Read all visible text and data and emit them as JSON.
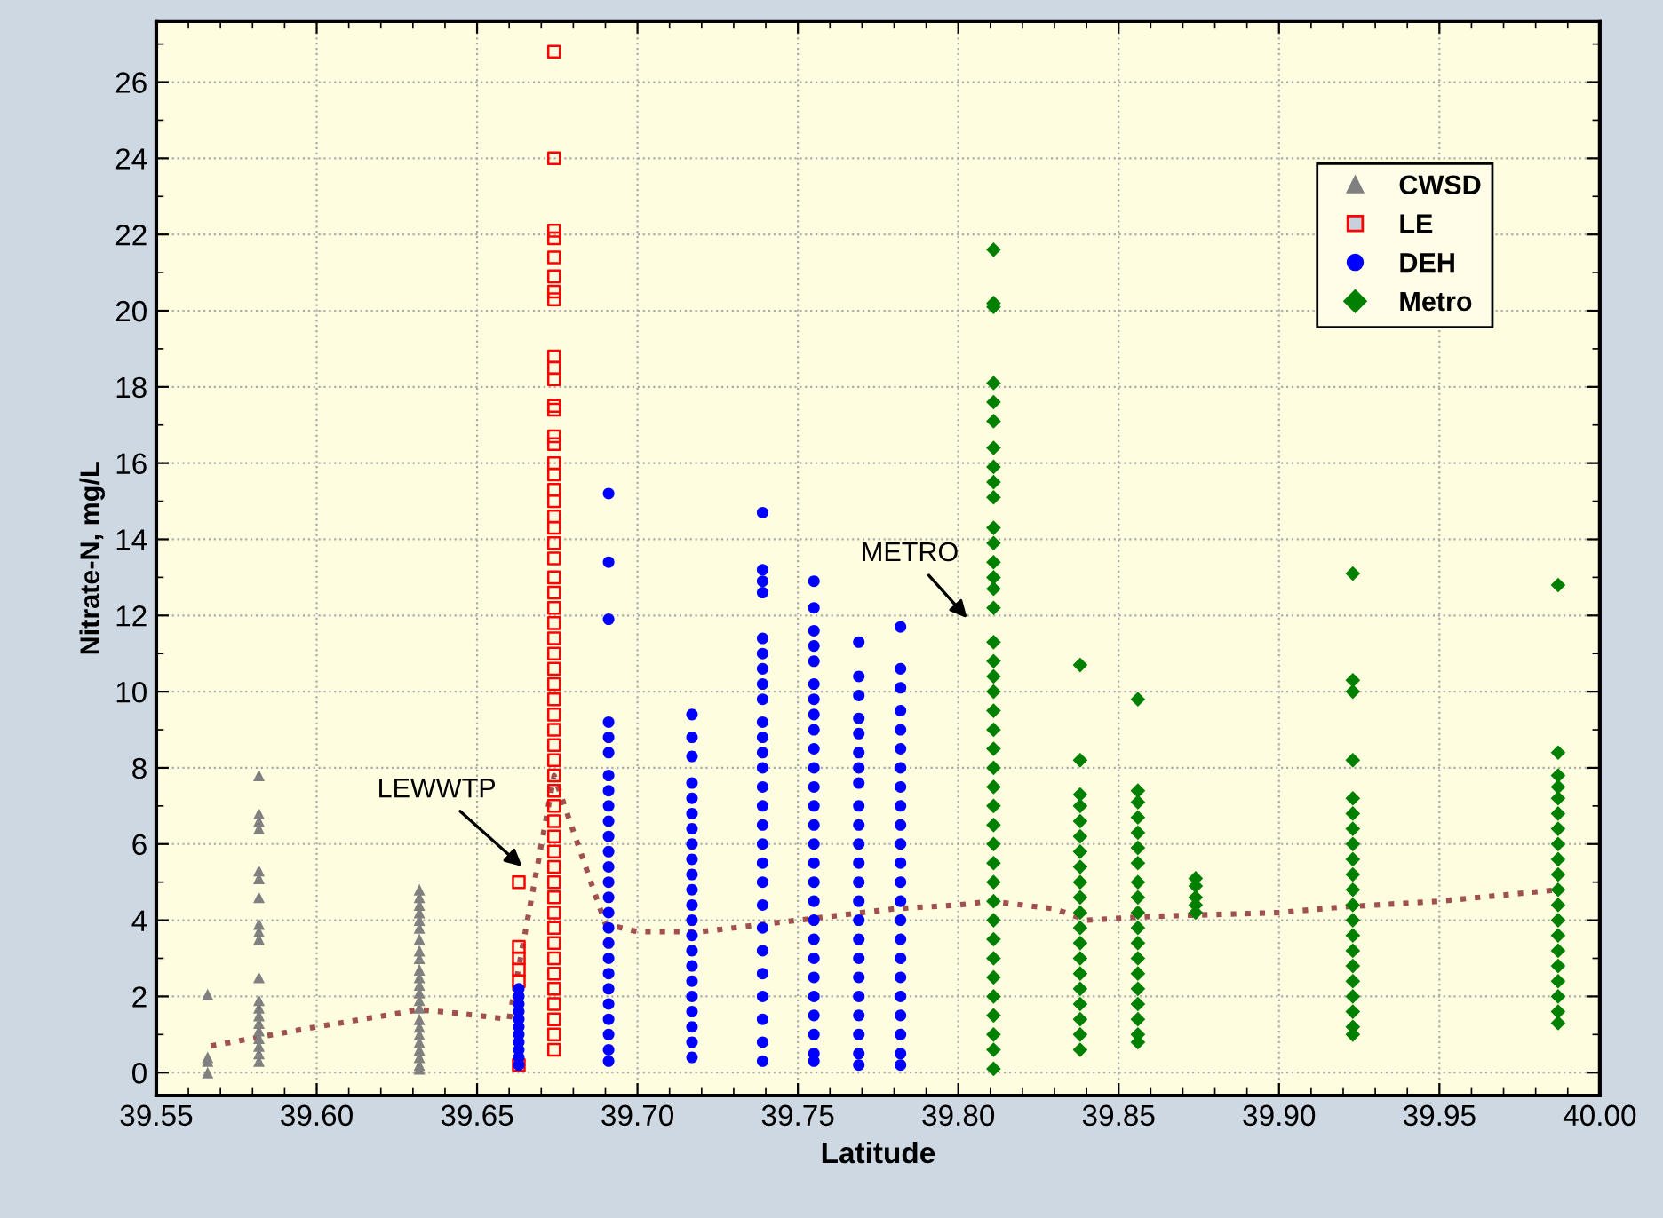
{
  "chart_data": {
    "type": "scatter",
    "xlabel": "Latitude",
    "ylabel": "Nitrate-N, mg/L",
    "xlim": [
      39.55,
      40.0
    ],
    "xticks": [
      {
        "value": 39.55,
        "label": "39.55"
      },
      {
        "value": 39.6,
        "label": "39.60"
      },
      {
        "value": 39.65,
        "label": "39.65"
      },
      {
        "value": 39.7,
        "label": "39.70"
      },
      {
        "value": 39.75,
        "label": "39.75"
      },
      {
        "value": 39.8,
        "label": "39.80"
      },
      {
        "value": 39.85,
        "label": "39.85"
      },
      {
        "value": 39.9,
        "label": "39.90"
      },
      {
        "value": 39.95,
        "label": "39.95"
      },
      {
        "value": 40.0,
        "label": "40.00"
      }
    ],
    "ylim": [
      -0.6,
      27.6
    ],
    "yticks": [
      0,
      2,
      4,
      6,
      8,
      10,
      12,
      14,
      16,
      18,
      20,
      22,
      24,
      26
    ],
    "grid": true,
    "legend": "top right",
    "annotations": [
      "LEWWTP",
      "METRO"
    ],
    "series": [
      {
        "name": "CWSD",
        "marker": "triangle",
        "color": "#808080",
        "x": [
          39.566,
          39.566,
          39.566,
          39.566,
          39.582,
          39.582,
          39.582,
          39.582,
          39.582,
          39.582,
          39.582,
          39.582,
          39.582,
          39.582,
          39.582,
          39.582,
          39.582,
          39.582,
          39.582,
          39.582,
          39.582,
          39.582,
          39.582,
          39.582,
          39.632,
          39.632,
          39.632,
          39.632,
          39.632,
          39.632,
          39.632,
          39.632,
          39.632,
          39.632,
          39.632,
          39.632,
          39.632,
          39.632,
          39.632,
          39.632,
          39.632,
          39.632,
          39.632,
          39.632,
          39.632,
          39.632,
          39.632
        ],
        "values": [
          2.05,
          0.4,
          0.3,
          0.0,
          7.8,
          6.8,
          6.6,
          6.4,
          5.3,
          5.1,
          4.6,
          3.9,
          3.7,
          3.5,
          2.5,
          1.9,
          1.7,
          1.5,
          1.3,
          1.1,
          0.9,
          0.7,
          0.5,
          0.3,
          4.8,
          4.6,
          4.4,
          4.2,
          4.0,
          3.8,
          3.5,
          3.2,
          3.0,
          2.7,
          2.5,
          2.3,
          2.1,
          1.9,
          1.7,
          1.4,
          1.2,
          1.0,
          0.8,
          0.6,
          0.4,
          0.2,
          0.1
        ]
      },
      {
        "name": "LE",
        "marker": "square",
        "color": "#ff0000",
        "x": [
          39.663,
          39.663,
          39.663,
          39.663,
          39.663,
          39.663,
          39.674,
          39.674,
          39.674,
          39.674,
          39.674,
          39.674,
          39.674,
          39.674,
          39.674,
          39.674,
          39.674,
          39.674,
          39.674,
          39.674,
          39.674,
          39.674,
          39.674,
          39.674,
          39.674,
          39.674,
          39.674,
          39.674,
          39.674,
          39.674,
          39.674,
          39.674,
          39.674,
          39.674,
          39.674,
          39.674,
          39.674,
          39.674,
          39.674,
          39.674,
          39.674,
          39.674,
          39.674,
          39.674,
          39.674,
          39.674,
          39.674,
          39.674,
          39.674,
          39.674,
          39.674,
          39.674,
          39.674,
          39.674,
          39.674,
          39.674,
          39.674,
          39.674,
          39.674,
          39.674,
          39.674
        ],
        "values": [
          5.0,
          3.3,
          3.0,
          2.7,
          2.4,
          0.2,
          26.8,
          24.0,
          22.1,
          21.9,
          21.4,
          20.9,
          20.5,
          20.3,
          18.8,
          18.5,
          18.2,
          17.5,
          17.4,
          16.7,
          16.5,
          16.0,
          15.7,
          15.3,
          15.0,
          14.6,
          14.3,
          13.9,
          13.5,
          13.0,
          12.6,
          12.2,
          11.8,
          11.4,
          11.0,
          10.6,
          10.2,
          9.8,
          9.4,
          9.0,
          8.6,
          8.2,
          7.8,
          7.4,
          7.0,
          6.6,
          6.2,
          5.8,
          5.4,
          5.0,
          4.6,
          4.2,
          3.8,
          3.4,
          3.0,
          2.6,
          2.2,
          1.8,
          1.4,
          1.0,
          0.6
        ]
      },
      {
        "name": "DEH",
        "marker": "circle",
        "color": "#0000ff",
        "x": [
          39.663,
          39.663,
          39.663,
          39.663,
          39.663,
          39.663,
          39.663,
          39.663,
          39.663,
          39.663,
          39.663,
          39.691,
          39.691,
          39.691,
          39.691,
          39.691,
          39.691,
          39.691,
          39.691,
          39.691,
          39.691,
          39.691,
          39.691,
          39.691,
          39.691,
          39.691,
          39.691,
          39.691,
          39.691,
          39.691,
          39.691,
          39.691,
          39.691,
          39.691,
          39.691,
          39.691,
          39.691,
          39.717,
          39.717,
          39.717,
          39.717,
          39.717,
          39.717,
          39.717,
          39.717,
          39.717,
          39.717,
          39.717,
          39.717,
          39.717,
          39.717,
          39.717,
          39.717,
          39.717,
          39.717,
          39.717,
          39.717,
          39.717,
          39.717,
          39.739,
          39.739,
          39.739,
          39.739,
          39.739,
          39.739,
          39.739,
          39.739,
          39.739,
          39.739,
          39.739,
          39.739,
          39.739,
          39.739,
          39.739,
          39.739,
          39.739,
          39.739,
          39.739,
          39.739,
          39.739,
          39.739,
          39.739,
          39.739,
          39.739,
          39.739,
          39.739,
          39.755,
          39.755,
          39.755,
          39.755,
          39.755,
          39.755,
          39.755,
          39.755,
          39.755,
          39.755,
          39.755,
          39.755,
          39.755,
          39.755,
          39.755,
          39.755,
          39.755,
          39.755,
          39.755,
          39.755,
          39.755,
          39.755,
          39.755,
          39.755,
          39.755,
          39.755,
          39.755,
          39.769,
          39.769,
          39.769,
          39.769,
          39.769,
          39.769,
          39.769,
          39.769,
          39.769,
          39.769,
          39.769,
          39.769,
          39.769,
          39.769,
          39.769,
          39.769,
          39.769,
          39.769,
          39.769,
          39.769,
          39.769,
          39.769,
          39.769,
          39.782,
          39.782,
          39.782,
          39.782,
          39.782,
          39.782,
          39.782,
          39.782,
          39.782,
          39.782,
          39.782,
          39.782,
          39.782,
          39.782,
          39.782,
          39.782,
          39.782,
          39.782,
          39.782,
          39.782,
          39.782,
          39.782,
          39.782
        ],
        "values": [
          2.2,
          2.0,
          1.8,
          1.6,
          1.4,
          1.2,
          1.0,
          0.8,
          0.6,
          0.4,
          0.2,
          15.2,
          13.4,
          11.9,
          9.2,
          8.8,
          8.4,
          7.8,
          7.4,
          7.0,
          6.6,
          6.2,
          5.8,
          5.4,
          5.0,
          4.6,
          4.2,
          3.8,
          3.4,
          3.0,
          2.6,
          2.2,
          1.8,
          1.4,
          1.0,
          0.6,
          0.3,
          9.4,
          8.8,
          8.3,
          7.6,
          7.2,
          6.8,
          6.4,
          6.0,
          5.6,
          5.2,
          4.8,
          4.4,
          4.0,
          3.6,
          3.2,
          2.8,
          2.4,
          2.0,
          1.6,
          1.2,
          0.8,
          0.4,
          14.7,
          13.2,
          12.9,
          12.6,
          11.4,
          11.0,
          10.6,
          10.2,
          9.8,
          9.2,
          8.8,
          8.4,
          8.0,
          7.5,
          7.0,
          6.5,
          6.0,
          5.5,
          5.0,
          4.4,
          3.8,
          3.2,
          2.6,
          2.0,
          1.4,
          0.8,
          0.3,
          12.9,
          12.2,
          11.6,
          11.2,
          10.8,
          10.2,
          9.8,
          9.4,
          9.0,
          8.5,
          8.0,
          7.5,
          7.0,
          6.5,
          6.0,
          5.5,
          5.0,
          4.5,
          4.0,
          3.5,
          3.0,
          2.5,
          2.0,
          1.5,
          1.0,
          0.5,
          0.3,
          11.3,
          10.4,
          9.9,
          9.3,
          8.9,
          8.4,
          8.0,
          7.6,
          7.0,
          6.5,
          6.0,
          5.5,
          5.0,
          4.5,
          4.0,
          3.5,
          3.0,
          2.5,
          2.0,
          1.5,
          1.0,
          0.5,
          0.2,
          11.7,
          10.6,
          10.1,
          9.5,
          9.0,
          8.5,
          8.0,
          7.5,
          7.0,
          6.5,
          6.0,
          5.5,
          5.0,
          4.5,
          4.0,
          3.5,
          3.0,
          2.5,
          2.0,
          1.5,
          1.0,
          0.5,
          0.2
        ]
      },
      {
        "name": "Metro",
        "marker": "diamond",
        "color": "#008000",
        "x": [
          39.811,
          39.811,
          39.811,
          39.811,
          39.811,
          39.811,
          39.811,
          39.811,
          39.811,
          39.811,
          39.811,
          39.811,
          39.811,
          39.811,
          39.811,
          39.811,
          39.811,
          39.811,
          39.811,
          39.811,
          39.811,
          39.811,
          39.811,
          39.811,
          39.811,
          39.811,
          39.811,
          39.811,
          39.811,
          39.811,
          39.811,
          39.811,
          39.811,
          39.811,
          39.811,
          39.811,
          39.811,
          39.811,
          39.811,
          39.811,
          39.838,
          39.838,
          39.838,
          39.838,
          39.838,
          39.838,
          39.838,
          39.838,
          39.838,
          39.838,
          39.838,
          39.838,
          39.838,
          39.838,
          39.838,
          39.838,
          39.838,
          39.838,
          39.838,
          39.838,
          39.856,
          39.856,
          39.856,
          39.856,
          39.856,
          39.856,
          39.856,
          39.856,
          39.856,
          39.856,
          39.856,
          39.856,
          39.856,
          39.856,
          39.856,
          39.856,
          39.856,
          39.856,
          39.856,
          39.874,
          39.874,
          39.874,
          39.874,
          39.874,
          39.923,
          39.923,
          39.923,
          39.923,
          39.923,
          39.923,
          39.923,
          39.923,
          39.923,
          39.923,
          39.923,
          39.923,
          39.923,
          39.923,
          39.923,
          39.923,
          39.923,
          39.923,
          39.923,
          39.923,
          39.923,
          39.987,
          39.987,
          39.987,
          39.987,
          39.987,
          39.987,
          39.987,
          39.987,
          39.987,
          39.987,
          39.987,
          39.987,
          39.987,
          39.987,
          39.987,
          39.987,
          39.987,
          39.987,
          39.987,
          39.987
        ],
        "values": [
          21.6,
          20.2,
          20.1,
          18.1,
          17.6,
          17.1,
          16.4,
          15.9,
          15.5,
          15.1,
          14.3,
          13.9,
          13.4,
          13.0,
          12.7,
          12.2,
          11.3,
          10.8,
          10.4,
          10.0,
          9.5,
          9.0,
          8.5,
          8.0,
          7.5,
          7.0,
          6.5,
          6.0,
          5.5,
          5.0,
          4.5,
          4.0,
          3.5,
          3.0,
          2.5,
          2.0,
          1.5,
          1.0,
          0.6,
          0.1,
          10.7,
          8.2,
          7.3,
          7.0,
          6.6,
          6.2,
          5.8,
          5.4,
          5.0,
          4.6,
          4.2,
          3.8,
          3.4,
          3.0,
          2.6,
          2.2,
          1.8,
          1.4,
          1.0,
          0.6,
          9.8,
          7.4,
          7.1,
          6.7,
          6.3,
          5.9,
          5.5,
          5.0,
          4.6,
          4.2,
          3.8,
          3.4,
          3.0,
          2.6,
          2.2,
          1.8,
          1.4,
          1.0,
          0.8,
          5.1,
          4.9,
          4.6,
          4.4,
          4.2,
          13.1,
          10.3,
          10.0,
          8.2,
          7.2,
          6.8,
          6.4,
          6.0,
          5.6,
          5.2,
          4.8,
          4.4,
          4.0,
          3.6,
          3.2,
          2.8,
          2.4,
          2.0,
          1.6,
          1.2,
          1.0,
          12.8,
          8.4,
          7.8,
          7.5,
          7.2,
          6.8,
          6.4,
          6.0,
          5.6,
          5.2,
          4.8,
          4.4,
          4.0,
          3.6,
          3.2,
          2.8,
          2.4,
          2.0,
          1.6,
          1.3
        ]
      },
      {
        "type": "line",
        "line_style": "dotted",
        "marker": "none",
        "color": "#a05050",
        "x": [
          39.567,
          39.58,
          39.6,
          39.632,
          39.645,
          39.66,
          39.674,
          39.69,
          39.7,
          39.72,
          39.74,
          39.76,
          39.78,
          39.8,
          39.81,
          39.83,
          39.84,
          39.86,
          39.9,
          39.92,
          39.95,
          39.987
        ],
        "values": [
          0.7,
          0.9,
          1.2,
          1.65,
          1.55,
          1.4,
          7.8,
          3.9,
          3.7,
          3.7,
          3.9,
          4.1,
          4.3,
          4.4,
          4.5,
          4.3,
          4.0,
          4.1,
          4.2,
          4.35,
          4.5,
          4.8
        ]
      }
    ]
  }
}
